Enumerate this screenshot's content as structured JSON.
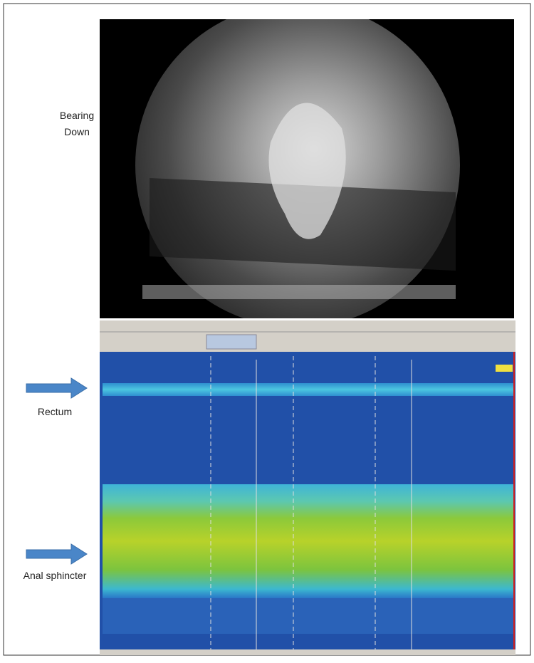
{
  "labels": {
    "bearing_down": [
      "Bearing",
      "Down"
    ],
    "rectum": "Rectum",
    "anal_sphincter": "Anal sphincter"
  }
}
